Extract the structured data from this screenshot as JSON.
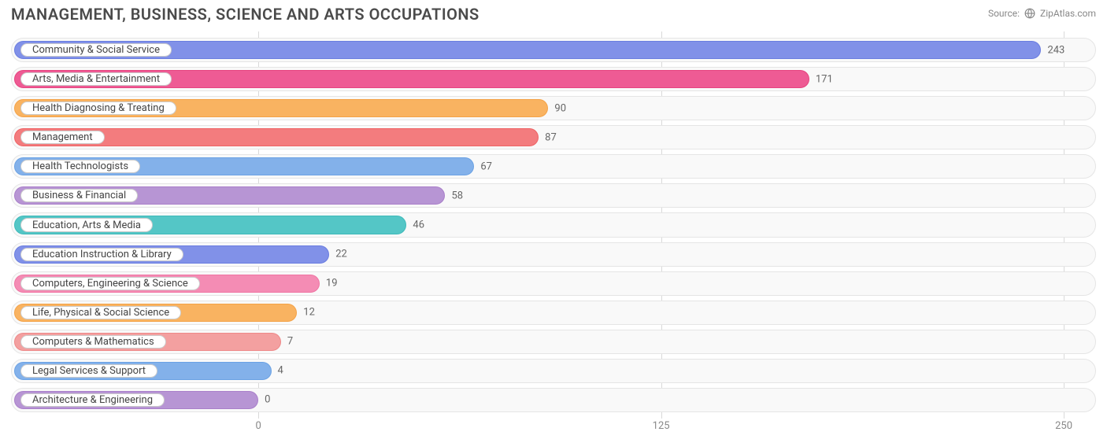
{
  "title": "MANAGEMENT, BUSINESS, SCIENCE AND ARTS OCCUPATIONS",
  "source_label": "Source:",
  "source_name": "ZipAtlas.com",
  "chart": {
    "type": "bar-horizontal",
    "background_color": "#ffffff",
    "track_bg": "#f9f9f9",
    "track_border": "#e5e5e5",
    "grid_color": "#d9d9d9",
    "title_fontsize": 20,
    "title_color": "#4a4a4a",
    "label_fontsize": 13,
    "value_fontsize": 13,
    "value_color": "#666666",
    "label_color": "#444444",
    "xlim": [
      0,
      260
    ],
    "xticks": [
      0,
      125,
      250
    ],
    "xtick_labels": [
      "0",
      "125",
      "250"
    ],
    "label_pill_bg": "#ffffff",
    "label_pill_border": "#cccccc",
    "bar_origin_pct": 22.8,
    "bars": [
      {
        "label": "Community & Social Service",
        "value": 243,
        "color": "#8191e8",
        "border": "#6a7de0"
      },
      {
        "label": "Arts, Media & Entertainment",
        "value": 171,
        "color": "#ee5b94",
        "border": "#e6437f"
      },
      {
        "label": "Health Diagnosing & Treating",
        "value": 90,
        "color": "#f9b361",
        "border": "#f4a247"
      },
      {
        "label": "Management",
        "value": 87,
        "color": "#f37c7e",
        "border": "#ee6365"
      },
      {
        "label": "Health Technologists",
        "value": 67,
        "color": "#83b1ea",
        "border": "#6ba2e4"
      },
      {
        "label": "Business & Financial",
        "value": 58,
        "color": "#b795d4",
        "border": "#a97fca"
      },
      {
        "label": "Education, Arts & Media",
        "value": 46,
        "color": "#54c6c6",
        "border": "#3ebaba"
      },
      {
        "label": "Education Instruction & Library",
        "value": 22,
        "color": "#8191e8",
        "border": "#6a7de0"
      },
      {
        "label": "Computers, Engineering & Science",
        "value": 19,
        "color": "#f48cb4",
        "border": "#f074a3"
      },
      {
        "label": "Life, Physical & Social Science",
        "value": 12,
        "color": "#f9b361",
        "border": "#f4a247"
      },
      {
        "label": "Computers & Mathematics",
        "value": 7,
        "color": "#f3a0a0",
        "border": "#ee8888"
      },
      {
        "label": "Legal Services & Support",
        "value": 4,
        "color": "#83b1ea",
        "border": "#6ba2e4"
      },
      {
        "label": "Architecture & Engineering",
        "value": 0,
        "color": "#b795d4",
        "border": "#a97fca"
      }
    ]
  }
}
